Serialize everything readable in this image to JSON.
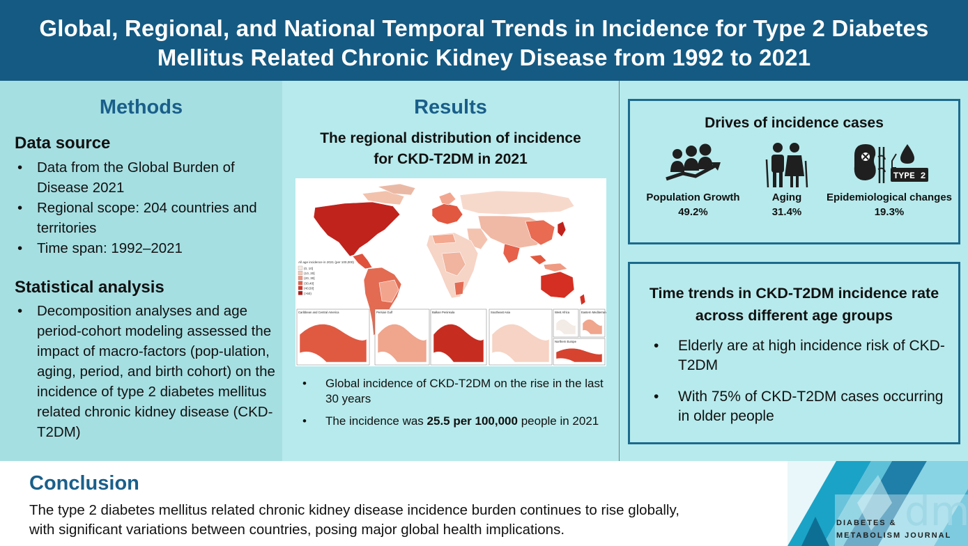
{
  "header": {
    "title_line1": "Global, Regional, and National Temporal Trends in Incidence for Type 2 Diabetes",
    "title_line2": "Mellitus Related Chronic Kidney Disease from 1992 to 2021"
  },
  "methods": {
    "title": "Methods",
    "data_source": {
      "heading": "Data source",
      "items": [
        "Data from the Global Burden of Disease 2021",
        "Regional scope: 204 countries and territories",
        "Time span: 1992–2021"
      ]
    },
    "statistical_analysis": {
      "heading": "Statistical analysis",
      "items": [
        "Decomposition analyses and age period-cohort modeling assessed the impact of macro-factors (pop-ulation, aging, period, and birth cohort) on the incidence of type 2 diabetes mellitus related chronic kidney disease (CKD-T2DM)"
      ]
    }
  },
  "results": {
    "title": "Results",
    "map_title_line1": "The regional distribution of incidence",
    "map_title_line2": "for CKD-T2DM in 2021",
    "map": {
      "legend_title": "All age incidence in 2021 (per 100,000)",
      "legend": [
        {
          "label": "(0, 10]",
          "color": "#f4e8e0"
        },
        {
          "label": "(10, 20]",
          "color": "#f6c7b4"
        },
        {
          "label": "(20, 30]",
          "color": "#f1937a"
        },
        {
          "label": "(30,40]",
          "color": "#e5604a"
        },
        {
          "label": "(40,50]",
          "color": "#d43427"
        },
        {
          "label": "(>50)",
          "color": "#b01b15"
        }
      ],
      "insets": [
        "Caribbean and Central America",
        "Persian Gulf",
        "Balkan Peninsula",
        "Southeast Asia",
        "West Africa",
        "Eastern Mediterranean",
        "Northern Europe"
      ]
    },
    "bullets": {
      "b1": "Global incidence of CKD-T2DM on the rise in the last 30 years",
      "b2_pre": "The  incidence was ",
      "b2_bold": "25.5 per 100,000",
      "b2_post": " people in 2021"
    }
  },
  "drivers": {
    "title": "Drives of incidence cases",
    "items": [
      {
        "label": "Population Growth",
        "value": "49.2%",
        "icon": "population-growth-icon"
      },
      {
        "label": "Aging",
        "value": "31.4%",
        "icon": "elderly-couple-icon"
      },
      {
        "label": "Epidemiological changes",
        "value": "19.3%",
        "icon": "kidney-diabetes-icon"
      }
    ],
    "type2_badge": "TYPE 2"
  },
  "time_trends": {
    "title_line1": "Time trends in CKD-T2DM incidence rate",
    "title_line2": "across different age groups",
    "items": [
      "Elderly are at high incidence risk of CKD-T2DM",
      "With 75% of CKD-T2DM cases occurring in older people"
    ]
  },
  "conclusion": {
    "title": "Conclusion",
    "text_line1": "The type 2 diabetes mellitus related chronic kidney disease incidence burden continues to rise globally,",
    "text_line2": "with significant variations between countries, posing major global health implications."
  },
  "logo": {
    "mark": "dmj",
    "line1": "DIABETES &",
    "line2": "METABOLISM JOURNAL"
  },
  "colors": {
    "header_bg": "#155a82",
    "title_blue": "#1a5f8a",
    "methods_bg": "#a6dfe2",
    "results_bg": "#b7eaec",
    "box_border": "#1c6a8d"
  }
}
